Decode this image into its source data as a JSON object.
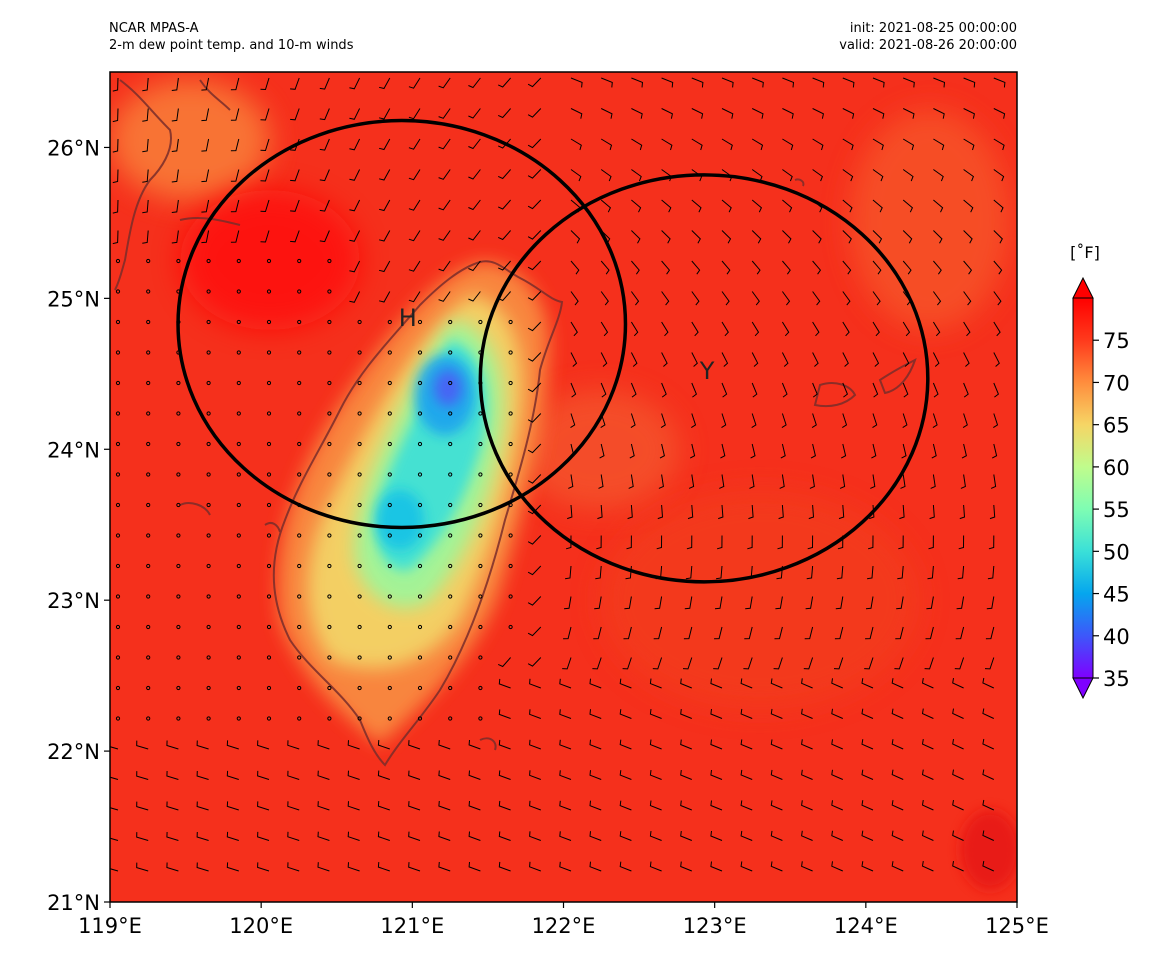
{
  "header": {
    "model": "NCAR MPAS-A",
    "field": "2-m dew point temp. and 10-m winds",
    "init": "init: 2021-08-25 00:00:00",
    "valid": "valid: 2021-08-26 20:00:00"
  },
  "map": {
    "lon_range": [
      119,
      125
    ],
    "lat_range": [
      21,
      26.5
    ],
    "lon_ticks": [
      {
        "value": 119,
        "label": "119°E"
      },
      {
        "value": 120,
        "label": "120°E"
      },
      {
        "value": 121,
        "label": "121°E"
      },
      {
        "value": 122,
        "label": "122°E"
      },
      {
        "value": 123,
        "label": "123°E"
      },
      {
        "value": 124,
        "label": "124°E"
      },
      {
        "value": 125,
        "label": "125°E"
      }
    ],
    "lat_ticks": [
      {
        "value": 21,
        "label": "21°N"
      },
      {
        "value": 22,
        "label": "22°N"
      },
      {
        "value": 23,
        "label": "23°N"
      },
      {
        "value": 24,
        "label": "24°N"
      },
      {
        "value": 25,
        "label": "25°N"
      },
      {
        "value": 26,
        "label": "26°N"
      }
    ],
    "background_color": "#f5301c",
    "circles": [
      {
        "center_lon": 120.93,
        "center_lat": 24.83,
        "radius_deg": 1.48
      },
      {
        "center_lon": 122.93,
        "center_lat": 24.47,
        "radius_deg": 1.48
      }
    ],
    "markers": [
      {
        "label": "H",
        "lon": 120.97,
        "lat": 24.87
      },
      {
        "label": "Y",
        "lon": 122.95,
        "lat": 24.52
      }
    ]
  },
  "colorbar": {
    "units": "[˚F]",
    "min": 35,
    "max": 80,
    "ticks": [
      {
        "value": 35,
        "label": "35"
      },
      {
        "value": 40,
        "label": "40"
      },
      {
        "value": 45,
        "label": "45"
      },
      {
        "value": 50,
        "label": "50"
      },
      {
        "value": 55,
        "label": "55"
      },
      {
        "value": 60,
        "label": "60"
      },
      {
        "value": 65,
        "label": "65"
      },
      {
        "value": 70,
        "label": "70"
      },
      {
        "value": 75,
        "label": "75"
      }
    ],
    "colormap": [
      "#7f00ff",
      "#3d57fa",
      "#05a6ee",
      "#3ae0d8",
      "#7efdb3",
      "#c0fc8c",
      "#f6d565",
      "#ff8d3d",
      "#ff3a1c",
      "#ff0000"
    ]
  }
}
